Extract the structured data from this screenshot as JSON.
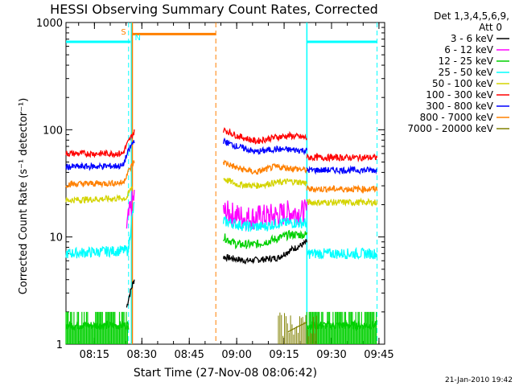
{
  "chart_data": {
    "type": "line",
    "title": "HESSI Observing Summary Count Rates, Corrected",
    "xlabel": "Start Time (27-Nov-08 08:06:42)",
    "ylabel": "Corrected Count Rate (s⁻¹ detector⁻¹)",
    "yscale": "log",
    "ylim": [
      1,
      1000
    ],
    "xlim_minutes": [
      8.1,
      9.78
    ],
    "x_ticks": [
      "08:15",
      "08:30",
      "08:45",
      "09:00",
      "09:15",
      "09:30",
      "09:45"
    ],
    "y_ticks": [
      "1",
      "10",
      "100",
      "1000"
    ],
    "legend_header": [
      "Det 1,3,4,5,6,9,",
      "Att 0"
    ],
    "legend_position": "right",
    "series": [
      {
        "name": "3 - 6 keV",
        "color": "#000000",
        "segments": [
          {
            "x": [
              8.42,
              8.46
            ],
            "y": [
              2.2,
              4.0
            ]
          },
          {
            "x": [
              8.93,
              9.05,
              9.15,
              9.22,
              9.28,
              9.35,
              9.37
            ],
            "y": [
              6.5,
              6.0,
              6.2,
              6.4,
              7.5,
              8.5,
              9.0
            ]
          }
        ]
      },
      {
        "name": "6 - 12 keV",
        "color": "#ff00ff",
        "segments": [
          {
            "x": [
              8.42,
              8.46
            ],
            "y": [
              12,
              24
            ]
          },
          {
            "x": [
              8.93,
              9.05,
              9.15,
              9.22,
              9.28,
              9.37
            ],
            "y": [
              17,
              15,
              15.5,
              16,
              17,
              17
            ]
          }
        ]
      },
      {
        "name": "12 - 25 keV",
        "color": "#00d000",
        "segments": [
          {
            "x": [
              8.1,
              8.43
            ],
            "y": [
              1.5,
              1.5
            ]
          },
          {
            "x": [
              8.93,
              9.0,
              9.1,
              9.2,
              9.28,
              9.37
            ],
            "y": [
              10,
              8.5,
              8.5,
              9.5,
              10.5,
              10.5
            ]
          },
          {
            "x": [
              9.37,
              9.74
            ],
            "y": [
              1.5,
              1.5
            ]
          }
        ]
      },
      {
        "name": "25 - 50 keV",
        "color": "#00ffff",
        "segments": [
          {
            "x": [
              8.1,
              8.43,
              8.46
            ],
            "y": [
              7.0,
              7.5,
              20
            ]
          },
          {
            "x": [
              8.93,
              9.05,
              9.15,
              9.22,
              9.28,
              9.37
            ],
            "y": [
              14,
              12.5,
              12.5,
              13.5,
              13.5,
              13.5
            ]
          },
          {
            "x": [
              9.37,
              9.74
            ],
            "y": [
              7.0,
              7.0
            ]
          }
        ]
      },
      {
        "name": "50 - 100 keV",
        "color": "#d4d400",
        "segments": [
          {
            "x": [
              8.1,
              8.42,
              8.45
            ],
            "y": [
              22,
              23,
              30
            ]
          },
          {
            "x": [
              8.93,
              9.0,
              9.1,
              9.2,
              9.28,
              9.37
            ],
            "y": [
              35,
              31,
              30,
              32,
              33,
              32
            ]
          },
          {
            "x": [
              9.37,
              9.74
            ],
            "y": [
              21,
              21
            ]
          }
        ]
      },
      {
        "name": "100 - 300 keV",
        "color": "#ff0000",
        "segments": [
          {
            "x": [
              8.1,
              8.4,
              8.46
            ],
            "y": [
              60,
              60,
              95
            ]
          },
          {
            "x": [
              8.93,
              9.0,
              9.1,
              9.2,
              9.28,
              9.37
            ],
            "y": [
              100,
              88,
              78,
              85,
              88,
              84
            ]
          },
          {
            "x": [
              9.37,
              9.74
            ],
            "y": [
              55,
              55
            ]
          }
        ]
      },
      {
        "name": "300 - 800 keV",
        "color": "#0000ff",
        "segments": [
          {
            "x": [
              8.1,
              8.4,
              8.46
            ],
            "y": [
              45,
              46,
              80
            ]
          },
          {
            "x": [
              8.93,
              9.0,
              9.1,
              9.2,
              9.28,
              9.37
            ],
            "y": [
              78,
              70,
              62,
              66,
              65,
              64
            ]
          },
          {
            "x": [
              9.37,
              9.74
            ],
            "y": [
              42,
              42
            ]
          }
        ]
      },
      {
        "name": "800 - 7000 keV",
        "color": "#ff8000",
        "segments": [
          {
            "x": [
              8.1,
              8.4,
              8.46
            ],
            "y": [
              31,
              32,
              50
            ]
          },
          {
            "x": [
              8.93,
              9.0,
              9.1,
              9.2,
              9.28,
              9.37
            ],
            "y": [
              50,
              44,
              40,
              45,
              44,
              42
            ]
          },
          {
            "x": [
              9.37,
              9.74
            ],
            "y": [
              28,
              28
            ]
          }
        ]
      },
      {
        "name": "7000 - 20000 keV",
        "color": "#808000",
        "segments": [
          {
            "x": [
              9.27,
              9.37
            ],
            "y": [
              1.3,
              1.6
            ]
          }
        ]
      }
    ],
    "annotations": [
      {
        "text": "S",
        "color": "#ff8000"
      },
      {
        "text": "N",
        "color": "#00ffff"
      }
    ],
    "timestamp": "21-Jan-2010 19:42"
  }
}
